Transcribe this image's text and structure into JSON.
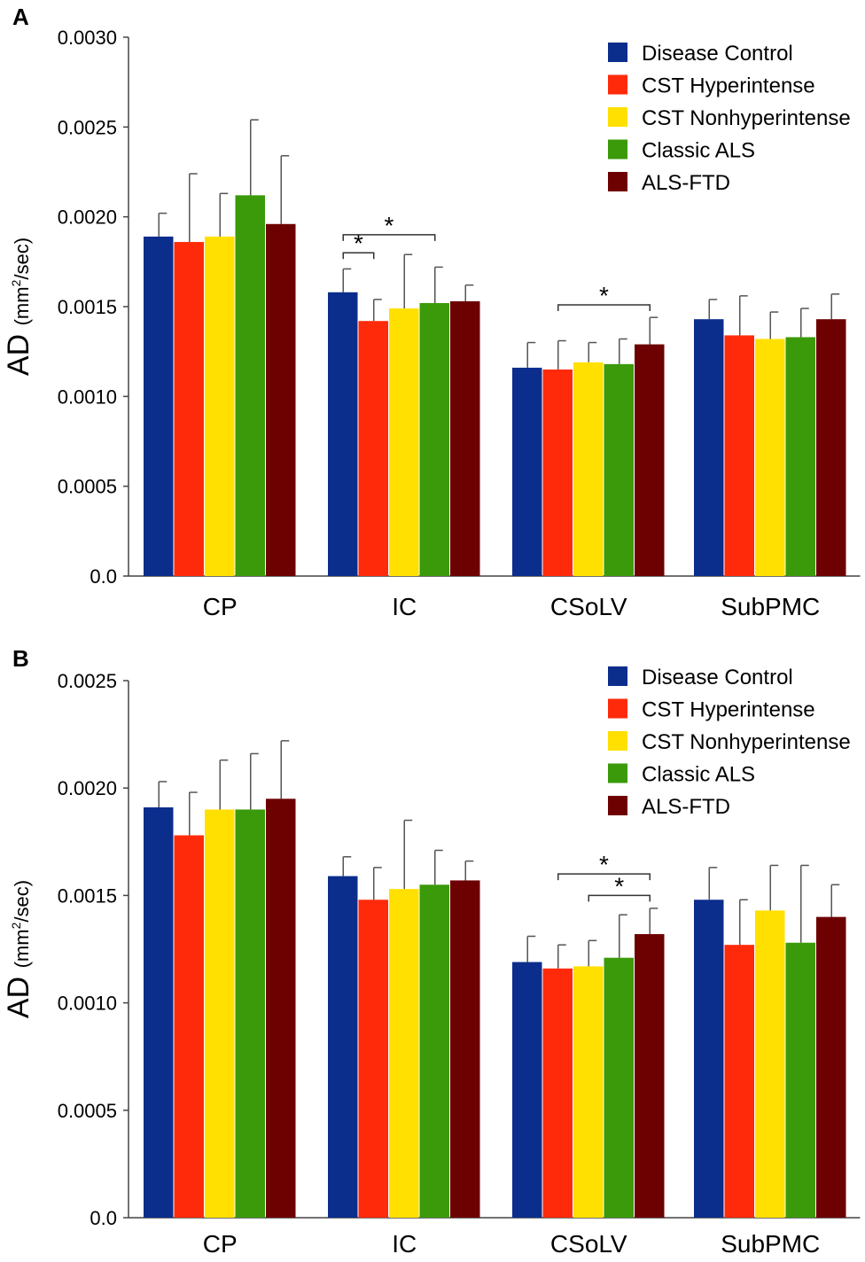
{
  "chart_data": [
    {
      "type": "bar",
      "panel_label": "A",
      "ylabel_main": "AD",
      "ylabel_unit_prefix": "(mm",
      "ylabel_unit_sup": "2",
      "ylabel_unit_suffix": "/sec)",
      "ylim": [
        0,
        0.003
      ],
      "yticks": [
        0,
        0.0005,
        0.001,
        0.0015,
        0.002,
        0.0025,
        0.003
      ],
      "ytick_labels": [
        "0.0",
        "0.0005",
        "0.0010",
        "0.0015",
        "0.0020",
        "0.0025",
        "0.0030"
      ],
      "categories": [
        "CP",
        "IC",
        "CSoLV",
        "SubPMC"
      ],
      "legend_position": "top-right",
      "series": [
        {
          "name": "Disease Control",
          "color": "#0b2d8c",
          "values": [
            0.00189,
            0.00158,
            0.00116,
            0.00143
          ],
          "errors": [
            0.00013,
            0.00013,
            0.00014,
            0.00011
          ]
        },
        {
          "name": "CST Hyperintense",
          "color": "#ff2a0a",
          "values": [
            0.00186,
            0.00142,
            0.00115,
            0.00134
          ],
          "errors": [
            0.00038,
            0.00012,
            0.00016,
            0.00022
          ]
        },
        {
          "name": "CST Nonhyperintense",
          "color": "#ffe000",
          "values": [
            0.00189,
            0.00149,
            0.00119,
            0.00132
          ],
          "errors": [
            0.00024,
            0.0003,
            0.00011,
            0.00015
          ]
        },
        {
          "name": "Classic ALS",
          "color": "#3a9a0a",
          "values": [
            0.00212,
            0.00152,
            0.00118,
            0.00133
          ],
          "errors": [
            0.00042,
            0.0002,
            0.00014,
            0.00016
          ]
        },
        {
          "name": "ALS-FTD",
          "color": "#6d0000",
          "values": [
            0.00196,
            0.00153,
            0.00129,
            0.00143
          ],
          "errors": [
            0.00038,
            9e-05,
            0.00015,
            0.00014
          ]
        }
      ],
      "significance": [
        {
          "category": 1,
          "from_series": 0,
          "to_series": 1,
          "y": 0.0018,
          "label": "*"
        },
        {
          "category": 1,
          "from_series": 0,
          "to_series": 3,
          "y": 0.0019,
          "label": "*"
        },
        {
          "category": 2,
          "from_series": 1,
          "to_series": 4,
          "y": 0.00151,
          "label": "*"
        }
      ]
    },
    {
      "type": "bar",
      "panel_label": "B",
      "ylabel_main": "AD",
      "ylabel_unit_prefix": "(mm",
      "ylabel_unit_sup": "2",
      "ylabel_unit_suffix": "/sec)",
      "ylim": [
        0,
        0.0025
      ],
      "yticks": [
        0,
        0.0005,
        0.001,
        0.0015,
        0.002,
        0.0025
      ],
      "ytick_labels": [
        "0.0",
        "0.0005",
        "0.0010",
        "0.0015",
        "0.0020",
        "0.0025"
      ],
      "categories": [
        "CP",
        "IC",
        "CSoLV",
        "SubPMC"
      ],
      "legend_position": "top-right",
      "series": [
        {
          "name": "Disease Control",
          "color": "#0b2d8c",
          "values": [
            0.00191,
            0.00159,
            0.00119,
            0.00148
          ],
          "errors": [
            0.00012,
            9e-05,
            0.00012,
            0.00015
          ]
        },
        {
          "name": "CST Hyperintense",
          "color": "#ff2a0a",
          "values": [
            0.00178,
            0.00148,
            0.00116,
            0.00127
          ],
          "errors": [
            0.0002,
            0.00015,
            0.00011,
            0.00021
          ]
        },
        {
          "name": "CST Nonhyperintense",
          "color": "#ffe000",
          "values": [
            0.0019,
            0.00153,
            0.00117,
            0.00143
          ],
          "errors": [
            0.00023,
            0.00032,
            0.00012,
            0.00021
          ]
        },
        {
          "name": "Classic ALS",
          "color": "#3a9a0a",
          "values": [
            0.0019,
            0.00155,
            0.00121,
            0.00128
          ],
          "errors": [
            0.00026,
            0.00016,
            0.0002,
            0.00036
          ]
        },
        {
          "name": "ALS-FTD",
          "color": "#6d0000",
          "values": [
            0.00195,
            0.00157,
            0.00132,
            0.0014
          ],
          "errors": [
            0.00027,
            9e-05,
            0.00012,
            0.00015
          ]
        }
      ],
      "significance": [
        {
          "category": 2,
          "from_series": 1,
          "to_series": 4,
          "y": 0.0016,
          "label": "*"
        },
        {
          "category": 2,
          "from_series": 2,
          "to_series": 4,
          "y": 0.0015,
          "label": "*"
        }
      ]
    }
  ]
}
